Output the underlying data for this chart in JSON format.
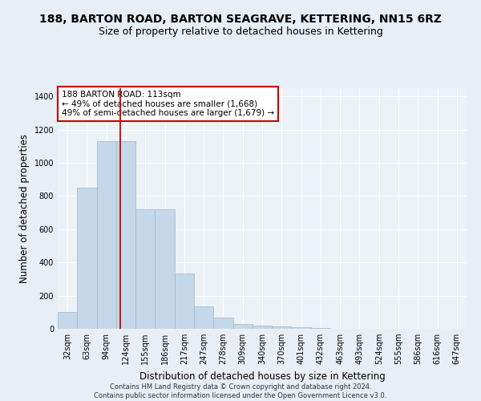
{
  "title": "188, BARTON ROAD, BARTON SEAGRAVE, KETTERING, NN15 6RZ",
  "subtitle": "Size of property relative to detached houses in Kettering",
  "xlabel": "Distribution of detached houses by size in Kettering",
  "ylabel": "Number of detached properties",
  "bin_labels": [
    "32sqm",
    "63sqm",
    "94sqm",
    "124sqm",
    "155sqm",
    "186sqm",
    "217sqm",
    "247sqm",
    "278sqm",
    "309sqm",
    "340sqm",
    "370sqm",
    "401sqm",
    "432sqm",
    "463sqm",
    "493sqm",
    "524sqm",
    "555sqm",
    "586sqm",
    "616sqm",
    "647sqm"
  ],
  "bar_values": [
    100,
    850,
    1130,
    1130,
    720,
    720,
    335,
    135,
    70,
    30,
    20,
    15,
    10,
    5,
    0,
    0,
    0,
    0,
    0,
    0,
    0
  ],
  "bar_color": "#c5d8ea",
  "bar_edgecolor": "#9ab8ce",
  "vline_x": 2.72,
  "vline_color": "#cc0000",
  "annotation_text": "188 BARTON ROAD: 113sqm\n← 49% of detached houses are smaller (1,668)\n49% of semi-detached houses are larger (1,679) →",
  "annotation_box_edgecolor": "#cc0000",
  "annotation_box_facecolor": "#ffffff",
  "ylim": [
    0,
    1450
  ],
  "yticks": [
    0,
    200,
    400,
    600,
    800,
    1000,
    1200,
    1400
  ],
  "footer": "Contains HM Land Registry data © Crown copyright and database right 2024.\nContains public sector information licensed under the Open Government Licence v3.0.",
  "bg_color": "#e8eef5",
  "plot_bg_color": "#edf2f7",
  "title_fontsize": 10,
  "subtitle_fontsize": 9,
  "tick_fontsize": 7,
  "ylabel_fontsize": 8.5,
  "xlabel_fontsize": 8.5,
  "footer_fontsize": 6
}
